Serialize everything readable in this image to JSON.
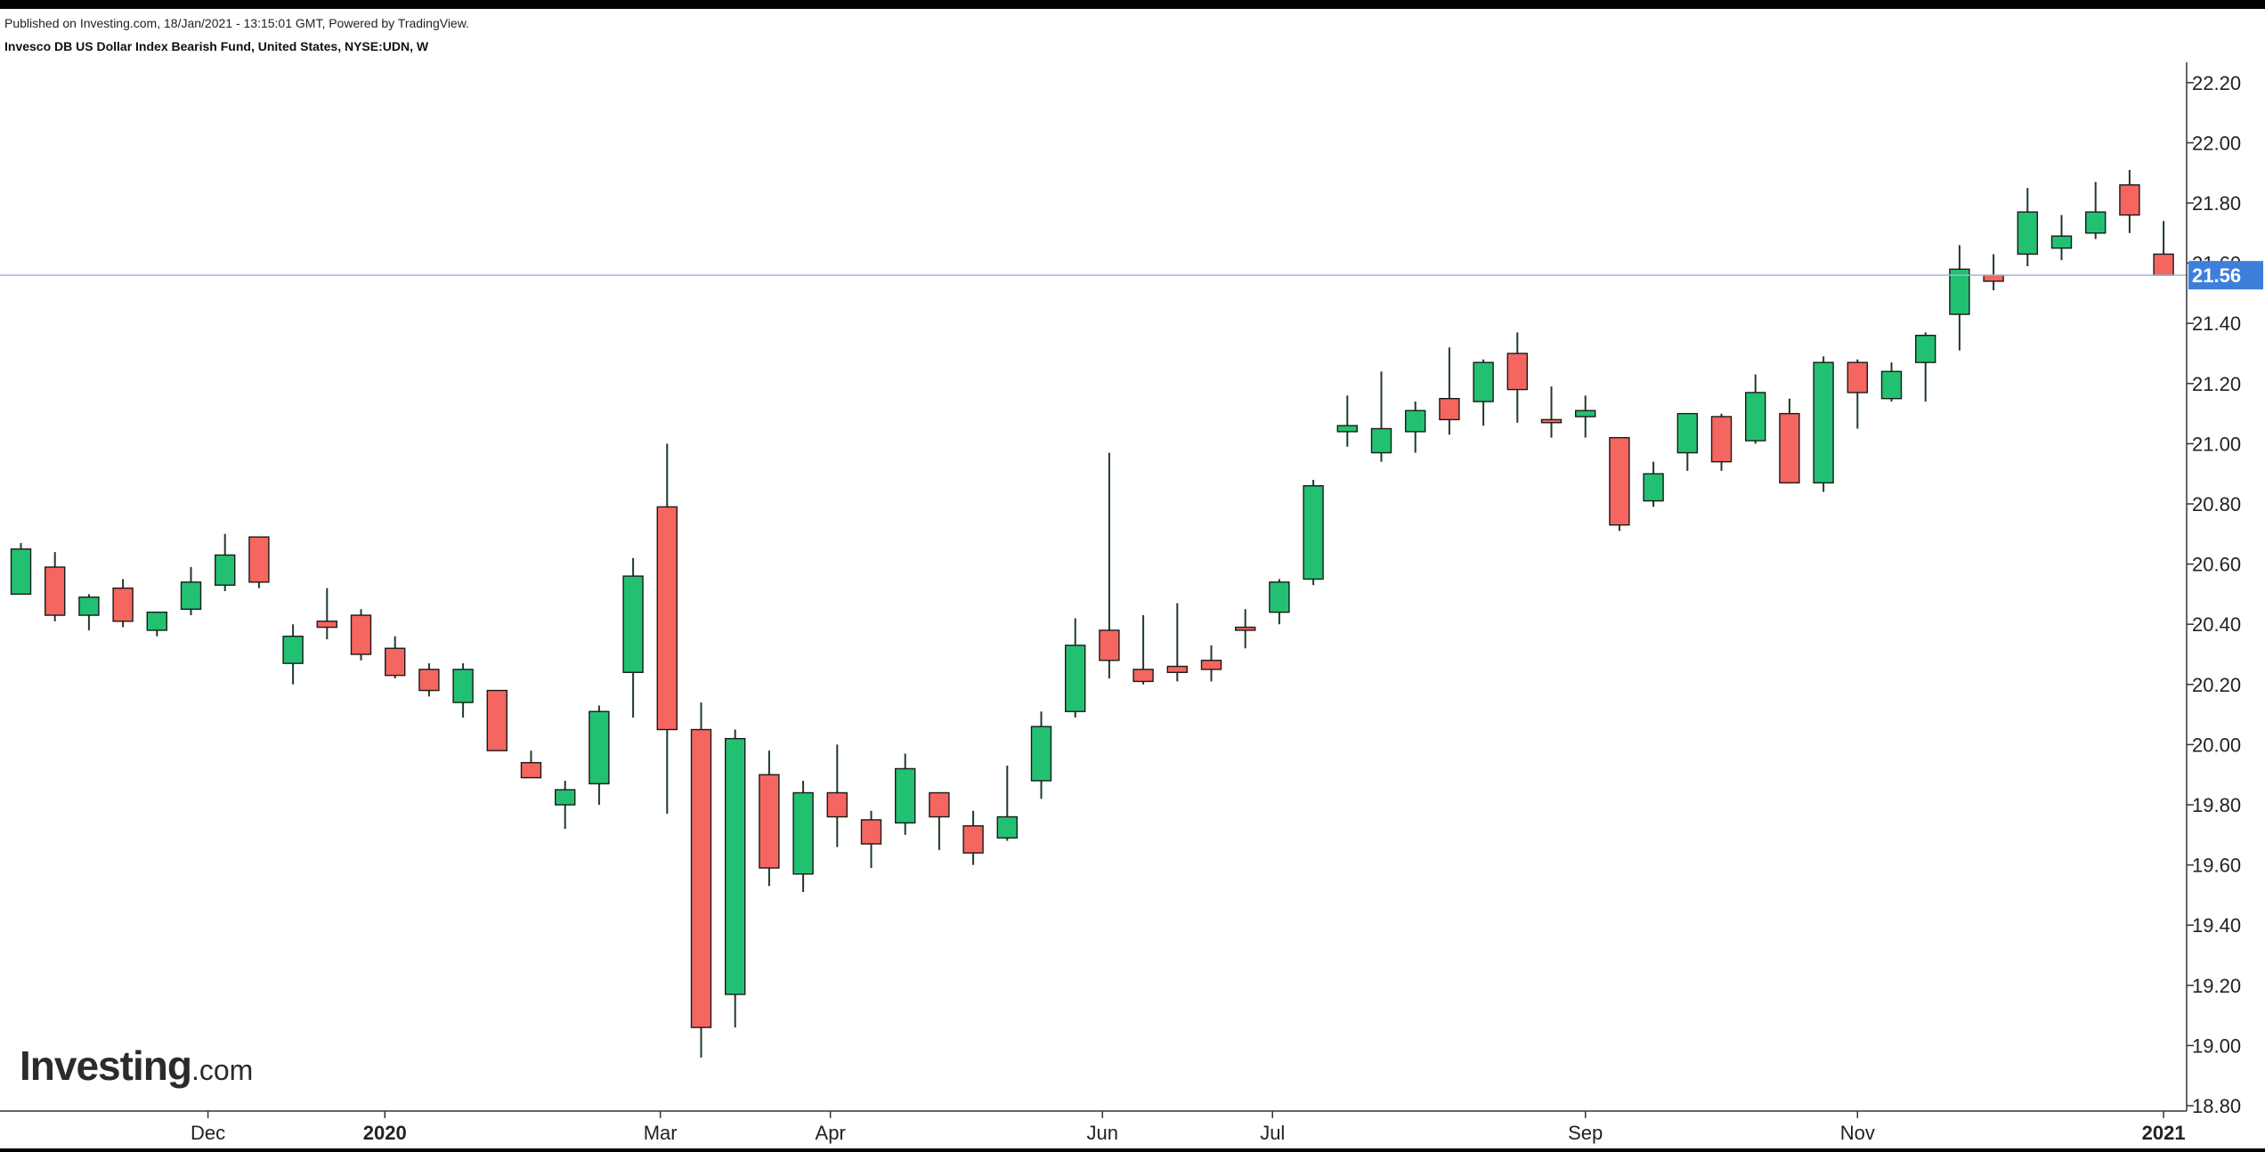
{
  "header": {
    "published": "Published on Investing.com, 18/Jan/2021 - 13:15:01 GMT, Powered by TradingView.",
    "title": "Invesco DB US Dollar Index Bearish Fund, United States, NYSE:UDN, W"
  },
  "logo": {
    "main": "Investing",
    "domain": ".com"
  },
  "colors": {
    "up": "#22c172",
    "down": "#f4665f",
    "wick": "#1f3a2a",
    "price_line": "#9fb7d8",
    "price_label_bg": "#3f7fdc",
    "axis": "#333333"
  },
  "chart_data": {
    "type": "candlestick",
    "interval": "W",
    "ylim": [
      18.8,
      22.25
    ],
    "y_ticks": [
      "18.80",
      "19.00",
      "19.20",
      "19.40",
      "19.60",
      "19.80",
      "20.00",
      "20.20",
      "20.40",
      "20.60",
      "20.80",
      "21.00",
      "21.20",
      "21.40",
      "21.60",
      "21.80",
      "22.00",
      "22.20"
    ],
    "x_labels": [
      {
        "label": "Dec",
        "index": 5.5,
        "bold": false
      },
      {
        "label": "2020",
        "index": 10.7,
        "bold": true
      },
      {
        "label": "Mar",
        "index": 18.8,
        "bold": false
      },
      {
        "label": "Apr",
        "index": 23.8,
        "bold": false
      },
      {
        "label": "Jun",
        "index": 31.8,
        "bold": false
      },
      {
        "label": "Jul",
        "index": 36.8,
        "bold": false
      },
      {
        "label": "Sep",
        "index": 46.0,
        "bold": false
      },
      {
        "label": "Nov",
        "index": 54.0,
        "bold": false
      },
      {
        "label": "2021",
        "index": 63.0,
        "bold": true
      }
    ],
    "last_price": 21.56,
    "last_price_label": "21.56",
    "candles": [
      {
        "o": 20.5,
        "h": 20.67,
        "l": 20.5,
        "c": 20.65
      },
      {
        "o": 20.59,
        "h": 20.64,
        "l": 20.41,
        "c": 20.43
      },
      {
        "o": 20.43,
        "h": 20.5,
        "l": 20.38,
        "c": 20.49
      },
      {
        "o": 20.52,
        "h": 20.55,
        "l": 20.39,
        "c": 20.41
      },
      {
        "o": 20.38,
        "h": 20.44,
        "l": 20.36,
        "c": 20.44
      },
      {
        "o": 20.45,
        "h": 20.59,
        "l": 20.43,
        "c": 20.54
      },
      {
        "o": 20.53,
        "h": 20.7,
        "l": 20.51,
        "c": 20.63
      },
      {
        "o": 20.69,
        "h": 20.69,
        "l": 20.52,
        "c": 20.54
      },
      {
        "o": 20.27,
        "h": 20.4,
        "l": 20.2,
        "c": 20.36
      },
      {
        "o": 20.41,
        "h": 20.52,
        "l": 20.35,
        "c": 20.39
      },
      {
        "o": 20.43,
        "h": 20.45,
        "l": 20.28,
        "c": 20.3
      },
      {
        "o": 20.32,
        "h": 20.36,
        "l": 20.22,
        "c": 20.23
      },
      {
        "o": 20.25,
        "h": 20.27,
        "l": 20.16,
        "c": 20.18
      },
      {
        "o": 20.14,
        "h": 20.27,
        "l": 20.09,
        "c": 20.25
      },
      {
        "o": 20.18,
        "h": 20.18,
        "l": 19.98,
        "c": 19.98
      },
      {
        "o": 19.94,
        "h": 19.98,
        "l": 19.89,
        "c": 19.89
      },
      {
        "o": 19.8,
        "h": 19.88,
        "l": 19.72,
        "c": 19.85
      },
      {
        "o": 19.87,
        "h": 20.13,
        "l": 19.8,
        "c": 20.11
      },
      {
        "o": 20.24,
        "h": 20.62,
        "l": 20.09,
        "c": 20.56
      },
      {
        "o": 20.79,
        "h": 21.0,
        "l": 19.77,
        "c": 20.05
      },
      {
        "o": 20.05,
        "h": 20.14,
        "l": 18.96,
        "c": 19.06
      },
      {
        "o": 19.17,
        "h": 20.05,
        "l": 19.06,
        "c": 20.02
      },
      {
        "o": 19.9,
        "h": 19.98,
        "l": 19.53,
        "c": 19.59
      },
      {
        "o": 19.57,
        "h": 19.88,
        "l": 19.51,
        "c": 19.84
      },
      {
        "o": 19.84,
        "h": 20.0,
        "l": 19.66,
        "c": 19.76
      },
      {
        "o": 19.75,
        "h": 19.78,
        "l": 19.59,
        "c": 19.67
      },
      {
        "o": 19.74,
        "h": 19.97,
        "l": 19.7,
        "c": 19.92
      },
      {
        "o": 19.84,
        "h": 19.84,
        "l": 19.65,
        "c": 19.76
      },
      {
        "o": 19.73,
        "h": 19.78,
        "l": 19.6,
        "c": 19.64
      },
      {
        "o": 19.69,
        "h": 19.93,
        "l": 19.68,
        "c": 19.76
      },
      {
        "o": 19.88,
        "h": 20.11,
        "l": 19.82,
        "c": 20.06
      },
      {
        "o": 20.11,
        "h": 20.42,
        "l": 20.09,
        "c": 20.33
      },
      {
        "o": 20.38,
        "h": 20.97,
        "l": 20.22,
        "c": 20.28
      },
      {
        "o": 20.25,
        "h": 20.43,
        "l": 20.2,
        "c": 20.21
      },
      {
        "o": 20.26,
        "h": 20.47,
        "l": 20.21,
        "c": 20.24
      },
      {
        "o": 20.28,
        "h": 20.33,
        "l": 20.21,
        "c": 20.25
      },
      {
        "o": 20.39,
        "h": 20.45,
        "l": 20.32,
        "c": 20.38
      },
      {
        "o": 20.44,
        "h": 20.55,
        "l": 20.4,
        "c": 20.54
      },
      {
        "o": 20.55,
        "h": 20.88,
        "l": 20.53,
        "c": 20.86
      },
      {
        "o": 21.04,
        "h": 21.16,
        "l": 20.99,
        "c": 21.06
      },
      {
        "o": 20.97,
        "h": 21.24,
        "l": 20.94,
        "c": 21.05
      },
      {
        "o": 21.04,
        "h": 21.14,
        "l": 20.97,
        "c": 21.11
      },
      {
        "o": 21.15,
        "h": 21.32,
        "l": 21.03,
        "c": 21.08
      },
      {
        "o": 21.14,
        "h": 21.28,
        "l": 21.06,
        "c": 21.27
      },
      {
        "o": 21.3,
        "h": 21.37,
        "l": 21.07,
        "c": 21.18
      },
      {
        "o": 21.08,
        "h": 21.19,
        "l": 21.02,
        "c": 21.07
      },
      {
        "o": 21.09,
        "h": 21.16,
        "l": 21.02,
        "c": 21.11
      },
      {
        "o": 21.02,
        "h": 21.02,
        "l": 20.71,
        "c": 20.73
      },
      {
        "o": 20.81,
        "h": 20.94,
        "l": 20.79,
        "c": 20.9
      },
      {
        "o": 20.97,
        "h": 21.1,
        "l": 20.91,
        "c": 21.1
      },
      {
        "o": 21.09,
        "h": 21.1,
        "l": 20.91,
        "c": 20.94
      },
      {
        "o": 21.01,
        "h": 21.23,
        "l": 21.0,
        "c": 21.17
      },
      {
        "o": 21.1,
        "h": 21.15,
        "l": 20.87,
        "c": 20.87
      },
      {
        "o": 20.87,
        "h": 21.29,
        "l": 20.84,
        "c": 21.27
      },
      {
        "o": 21.27,
        "h": 21.28,
        "l": 21.05,
        "c": 21.17
      },
      {
        "o": 21.15,
        "h": 21.27,
        "l": 21.14,
        "c": 21.24
      },
      {
        "o": 21.27,
        "h": 21.37,
        "l": 21.14,
        "c": 21.36
      },
      {
        "o": 21.43,
        "h": 21.66,
        "l": 21.31,
        "c": 21.58
      },
      {
        "o": 21.56,
        "h": 21.63,
        "l": 21.51,
        "c": 21.54
      },
      {
        "o": 21.63,
        "h": 21.85,
        "l": 21.59,
        "c": 21.77
      },
      {
        "o": 21.65,
        "h": 21.76,
        "l": 21.61,
        "c": 21.69
      },
      {
        "o": 21.7,
        "h": 21.87,
        "l": 21.68,
        "c": 21.77
      },
      {
        "o": 21.86,
        "h": 21.91,
        "l": 21.7,
        "c": 21.76
      },
      {
        "o": 21.63,
        "h": 21.74,
        "l": 21.56,
        "c": 21.56
      }
    ]
  }
}
